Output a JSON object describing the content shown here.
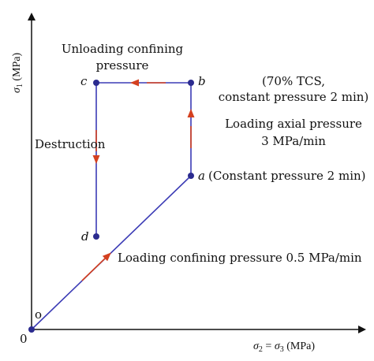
{
  "axes": {
    "y_label": "σ1 (MPa)",
    "y_sym": "σ",
    "y_sub": "1",
    "y_unit": " (MPa)",
    "x_label": "σ2 = σ3 (MPa)",
    "x_sym1": "σ",
    "x_sub1": "2",
    "x_eq": " = ",
    "x_sym2": "σ",
    "x_sub2": "3",
    "x_unit": " (MPa)",
    "origin_zero": "0",
    "origin_o": "o"
  },
  "points": {
    "a": "a",
    "b": "b",
    "c": "c",
    "d": "d"
  },
  "annotations": {
    "unloading_line1": "Unloading confining",
    "unloading_line2": "pressure",
    "tcs_line1": "(70% TCS,",
    "tcs_line2": "constant pressure 2 min)",
    "loading_axial_line1": "Loading axial pressure",
    "loading_axial_line2": "3 MPa/min",
    "destruction": "Destruction",
    "constant_a": "(Constant pressure 2 min)",
    "loading_confining": "Loading confining pressure 0.5 MPa/min"
  },
  "colors": {
    "path": "#3b3bb5",
    "arrow": "#d4401f",
    "point": "#2b2b8f",
    "axis": "#111111"
  }
}
